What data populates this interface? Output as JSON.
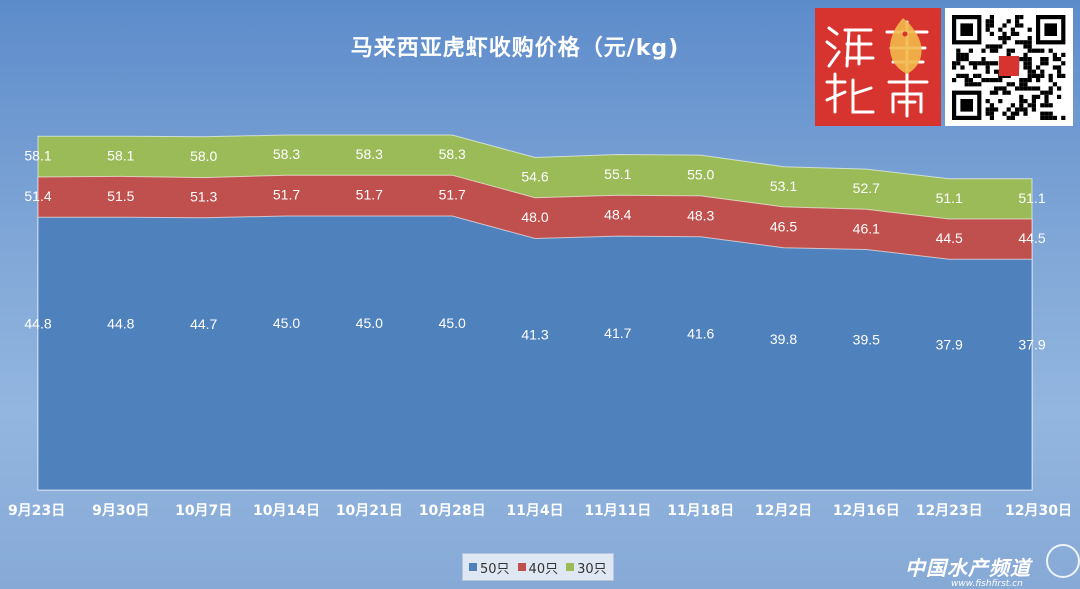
{
  "chart_data": {
    "type": "area",
    "stacking": "overlapping",
    "title": "马来西亚虎虾收购价格（元/kg)",
    "categories": [
      "9月23日",
      "9月30日",
      "10月7日",
      "10月14日",
      "10月21日",
      "10月28日",
      "11月4日",
      "11月11日",
      "11月18日",
      "12月2日",
      "12月16日",
      "12月23日",
      "12月30日"
    ],
    "series": [
      {
        "name": "50只",
        "color": "#4f81bd",
        "values": [
          44.8,
          44.8,
          44.7,
          45.0,
          45.0,
          45.0,
          41.3,
          41.7,
          41.6,
          39.8,
          39.5,
          37.9,
          37.9
        ]
      },
      {
        "name": "40只",
        "color": "#c0504d",
        "values": [
          51.4,
          51.5,
          51.3,
          51.7,
          51.7,
          51.7,
          48.0,
          48.4,
          48.3,
          46.5,
          46.1,
          44.5,
          44.5
        ]
      },
      {
        "name": "30只",
        "color": "#9bbb59",
        "values": [
          58.1,
          58.1,
          58.0,
          58.3,
          58.3,
          58.3,
          54.6,
          55.1,
          55.0,
          53.1,
          52.7,
          51.1,
          51.1
        ]
      }
    ],
    "legend_position": "bottom",
    "grid": false
  },
  "logo": {
    "text": "海鲜指南"
  },
  "watermark": {
    "main": "中国水产频道",
    "sub": "www.fishfirst.cn"
  }
}
